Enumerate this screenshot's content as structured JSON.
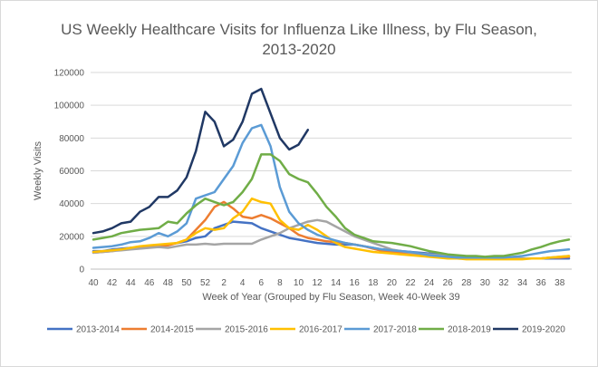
{
  "chart_data": {
    "type": "line",
    "title_line1": "US Weekly Healthcare Visits for Influenza Like Illness, by Flu Season,",
    "title_line2": "2013-2020",
    "xlabel": "Week of Year (Grouped by Flu Season, Week 40-Week 39",
    "ylabel": "Weekly Visits",
    "ylim": [
      0,
      120000
    ],
    "y_ticks": [
      0,
      20000,
      40000,
      60000,
      80000,
      100000,
      120000
    ],
    "x_tick_labels": [
      "40",
      "42",
      "44",
      "46",
      "48",
      "50",
      "52",
      "2",
      "4",
      "6",
      "8",
      "10",
      "12",
      "14",
      "16",
      "18",
      "20",
      "22",
      "24",
      "26",
      "28",
      "30",
      "32",
      "34",
      "36",
      "38"
    ],
    "weeks_per_season": 52,
    "grid": "horizontal",
    "legend_position": "bottom",
    "series": [
      {
        "name": "2013-2014",
        "color": "#4472c4",
        "values": [
          11000,
          11000,
          12000,
          12500,
          13000,
          13500,
          14000,
          14500,
          15000,
          16000,
          17000,
          19000,
          20000,
          25000,
          27000,
          29000,
          28500,
          28000,
          25000,
          23000,
          21000,
          19000,
          18000,
          17000,
          16000,
          15500,
          15000,
          15000,
          15000,
          14000,
          13000,
          12000,
          11500,
          11000,
          10500,
          10000,
          9500,
          9000,
          8500,
          8000,
          7500,
          7000,
          6500,
          6500,
          6500,
          6500,
          6500,
          6500,
          6500,
          6500,
          6500,
          6500
        ]
      },
      {
        "name": "2014-2015",
        "color": "#ed7d31",
        "values": [
          10000,
          10500,
          11000,
          12000,
          12500,
          13000,
          13500,
          14000,
          14500,
          16000,
          18000,
          24000,
          30000,
          38000,
          41000,
          37000,
          32000,
          31000,
          33000,
          31000,
          28000,
          25000,
          21000,
          19000,
          18000,
          17000,
          16500,
          16000,
          15000,
          14000,
          12500,
          11000,
          10500,
          10000,
          9500,
          9000,
          8500,
          8000,
          7500,
          7000,
          6500,
          6500,
          6500,
          6500,
          6500,
          6500,
          6500,
          6500,
          6500,
          7000,
          7000,
          7500
        ]
      },
      {
        "name": "2015-2016",
        "color": "#a5a5a5",
        "values": [
          10000,
          10500,
          11000,
          11500,
          12000,
          12500,
          13000,
          13500,
          13000,
          14000,
          15000,
          15000,
          15500,
          15000,
          15500,
          15500,
          15500,
          15500,
          18000,
          20000,
          22000,
          25000,
          27000,
          29000,
          30000,
          29000,
          26000,
          23000,
          20000,
          18000,
          16000,
          14000,
          12000,
          11000,
          10000,
          9500,
          9000,
          8500,
          8000,
          7500,
          7000,
          7000,
          6500,
          6500,
          6500,
          6500,
          6500,
          6500,
          6500,
          7000,
          7500,
          8000
        ]
      },
      {
        "name": "2016-2017",
        "color": "#ffc000",
        "values": [
          10500,
          11000,
          11500,
          12000,
          13000,
          14000,
          14500,
          15000,
          15500,
          16000,
          18000,
          22000,
          25000,
          24000,
          25000,
          31000,
          35000,
          43000,
          41000,
          40000,
          30000,
          25000,
          24000,
          27000,
          24000,
          20000,
          16000,
          13500,
          12500,
          11500,
          10500,
          10000,
          9500,
          9000,
          8500,
          8000,
          7500,
          7000,
          6500,
          6500,
          6000,
          6000,
          6000,
          6000,
          6000,
          6000,
          6000,
          6500,
          6500,
          7000,
          7500,
          8000
        ]
      },
      {
        "name": "2017-2018",
        "color": "#5b9bd5",
        "values": [
          13000,
          13500,
          14000,
          15000,
          16500,
          17000,
          19000,
          22000,
          20000,
          23000,
          28000,
          43000,
          45000,
          47000,
          55000,
          63000,
          77000,
          86000,
          88000,
          75000,
          50000,
          35000,
          28000,
          24000,
          21000,
          19000,
          17500,
          16000,
          15000,
          14000,
          13000,
          12000,
          11500,
          11000,
          10500,
          9500,
          8500,
          8000,
          7500,
          7000,
          7000,
          7000,
          7000,
          7000,
          7000,
          7500,
          8000,
          9000,
          10000,
          11000,
          11500,
          12000
        ]
      },
      {
        "name": "2018-2019",
        "color": "#70ad47",
        "values": [
          18000,
          19000,
          20000,
          22000,
          23000,
          24000,
          24500,
          25000,
          29000,
          28000,
          34000,
          39000,
          43000,
          41000,
          39000,
          41000,
          47000,
          55000,
          70000,
          70000,
          66000,
          58000,
          55000,
          53000,
          46000,
          38000,
          32000,
          25000,
          21000,
          19000,
          17000,
          16500,
          16000,
          15000,
          14000,
          12500,
          11000,
          10000,
          9000,
          8500,
          8000,
          8000,
          7500,
          8000,
          8000,
          9000,
          10000,
          12000,
          13500,
          15500,
          17000,
          18000
        ]
      },
      {
        "name": "2019-2020",
        "color": "#203864",
        "values": [
          22000,
          23000,
          25000,
          28000,
          29000,
          35000,
          38000,
          44000,
          44000,
          48000,
          56000,
          72000,
          96000,
          90000,
          75000,
          79000,
          90000,
          107000,
          110000,
          95000,
          80000,
          73000,
          76000,
          85000
        ]
      }
    ],
    "legend": [
      "2013-2014",
      "2014-2015",
      "2015-2016",
      "2016-2017",
      "2017-2018",
      "2018-2019",
      "2019-2020"
    ]
  }
}
